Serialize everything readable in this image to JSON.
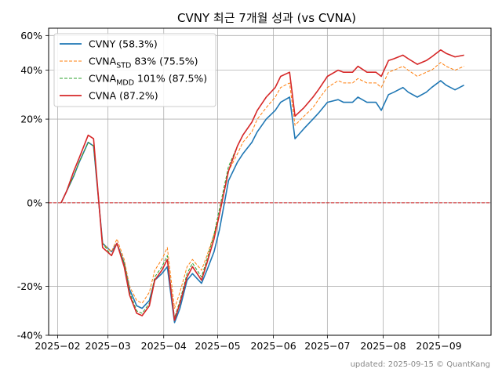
{
  "chart_data": {
    "type": "line",
    "title": "CVNY 최근 7개월 성과 (vs CVNA)",
    "xlabel": "",
    "ylabel": "",
    "x_ticks": [
      "2025−02",
      "2025−03",
      "2025−04",
      "2025−05",
      "2025−06",
      "2025−07",
      "2025−08",
      "2025−09"
    ],
    "y_ticks": [
      "60%",
      "40%",
      "20%",
      "0%",
      "-20%",
      "-40%"
    ],
    "y_tick_values": [
      60,
      40,
      20,
      0,
      -20,
      -40
    ],
    "ylim": [
      -40,
      65
    ],
    "y_scale": "symlog",
    "xlim": [
      "2025-01-27",
      "2025-09-30"
    ],
    "grid": true,
    "legend_position": "top-left",
    "reference_line": {
      "y": 0,
      "color": "#d62728",
      "style": "dashed"
    },
    "footer": "updated: 2025-09-15 © QuantKang",
    "legend": [
      {
        "key": "cvny",
        "label": "CVNY (58.3%)",
        "color": "#1f77b4",
        "style": "solid"
      },
      {
        "key": "std",
        "label_main": "CVNA",
        "label_sub": "STD",
        "label_rest": " 83% (75.5%)",
        "color": "#ff7f0e",
        "style": "dashed"
      },
      {
        "key": "mdd",
        "label_main": "CVNA",
        "label_sub": "MDD",
        "label_rest": " 101% (87.5%)",
        "color": "#2ca02c",
        "style": "dashed"
      },
      {
        "key": "cvna",
        "label": "CVNA (87.2%)",
        "color": "#d62728",
        "style": "solid"
      }
    ],
    "x": [
      "2025-02-03",
      "2025-02-06",
      "2025-02-10",
      "2025-02-13",
      "2025-02-18",
      "2025-02-21",
      "2025-02-26",
      "2025-03-03",
      "2025-03-06",
      "2025-03-10",
      "2025-03-13",
      "2025-03-17",
      "2025-03-20",
      "2025-03-24",
      "2025-03-27",
      "2025-03-31",
      "2025-04-03",
      "2025-04-07",
      "2025-04-10",
      "2025-04-14",
      "2025-04-17",
      "2025-04-22",
      "2025-04-25",
      "2025-04-29",
      "2025-05-02",
      "2025-05-07",
      "2025-05-12",
      "2025-05-15",
      "2025-05-20",
      "2025-05-23",
      "2025-05-28",
      "2025-06-02",
      "2025-06-05",
      "2025-06-10",
      "2025-06-13",
      "2025-06-18",
      "2025-06-23",
      "2025-06-26",
      "2025-07-01",
      "2025-07-07",
      "2025-07-10",
      "2025-07-15",
      "2025-07-18",
      "2025-07-23",
      "2025-07-28",
      "2025-07-31",
      "2025-08-04",
      "2025-08-07",
      "2025-08-12",
      "2025-08-15",
      "2025-08-20",
      "2025-08-25",
      "2025-08-28",
      "2025-09-02",
      "2025-09-05",
      "2025-09-10",
      "2025-09-15"
    ],
    "series": [
      {
        "name": "CVNY (58.3%)",
        "key": "cvny",
        "values": [
          0,
          2,
          5,
          8,
          13,
          12,
          -8,
          -10,
          -8,
          -13,
          -21,
          -27,
          -28,
          -25,
          -18,
          -16,
          -14,
          -34,
          -28,
          -18,
          -16,
          -19,
          -15,
          -10,
          -5,
          4,
          8,
          10,
          13,
          16,
          20,
          23,
          26,
          28,
          14,
          17,
          20,
          22,
          26,
          27,
          26,
          26,
          28,
          26,
          26,
          23,
          29,
          30,
          32,
          30,
          28,
          30,
          32,
          35,
          33,
          31,
          33
        ]
      },
      {
        "name": "CVNA STD 83% (75.5%)",
        "key": "std",
        "values": [
          0,
          2,
          5,
          8,
          13,
          12,
          -8,
          -10,
          -7,
          -12,
          -20,
          -25,
          -26,
          -22,
          -15,
          -12,
          -9,
          -28,
          -22,
          -14,
          -12,
          -15,
          -11,
          -6,
          -2,
          6,
          10,
          13,
          16,
          20,
          24,
          28,
          32,
          34,
          18,
          21,
          24,
          27,
          32,
          35,
          34,
          34,
          36,
          34,
          34,
          32,
          39,
          40,
          42,
          40,
          37,
          39,
          40,
          44,
          42,
          40,
          42
        ]
      },
      {
        "name": "CVNA MDD 101% (87.5%)",
        "key": "mdd",
        "values": [
          0,
          2,
          5,
          8,
          13,
          12,
          -8,
          -11,
          -8,
          -13,
          -22,
          -29,
          -30,
          -26,
          -17,
          -14,
          -11,
          -32,
          -25,
          -16,
          -13,
          -17,
          -12,
          -6,
          -1,
          7,
          12,
          15,
          19,
          23,
          28,
          32,
          37,
          39,
          21,
          24,
          28,
          31,
          37,
          40,
          39,
          39,
          42,
          39,
          39,
          37,
          45,
          46,
          48,
          46,
          43,
          45,
          47,
          51,
          49,
          47,
          48
        ]
      },
      {
        "name": "CVNA (87.2%)",
        "key": "cvna",
        "values": [
          0,
          2,
          6,
          9,
          15,
          14,
          -9,
          -11,
          -8,
          -14,
          -23,
          -30,
          -31,
          -27,
          -18,
          -15,
          -12,
          -33,
          -26,
          -17,
          -14,
          -18,
          -13,
          -7,
          -2,
          6,
          12,
          15,
          19,
          23,
          28,
          32,
          37,
          39,
          21,
          24,
          28,
          31,
          37,
          40,
          39,
          39,
          42,
          39,
          39,
          37,
          45,
          46,
          48,
          46,
          43,
          45,
          47,
          51,
          49,
          47,
          48
        ]
      }
    ]
  }
}
